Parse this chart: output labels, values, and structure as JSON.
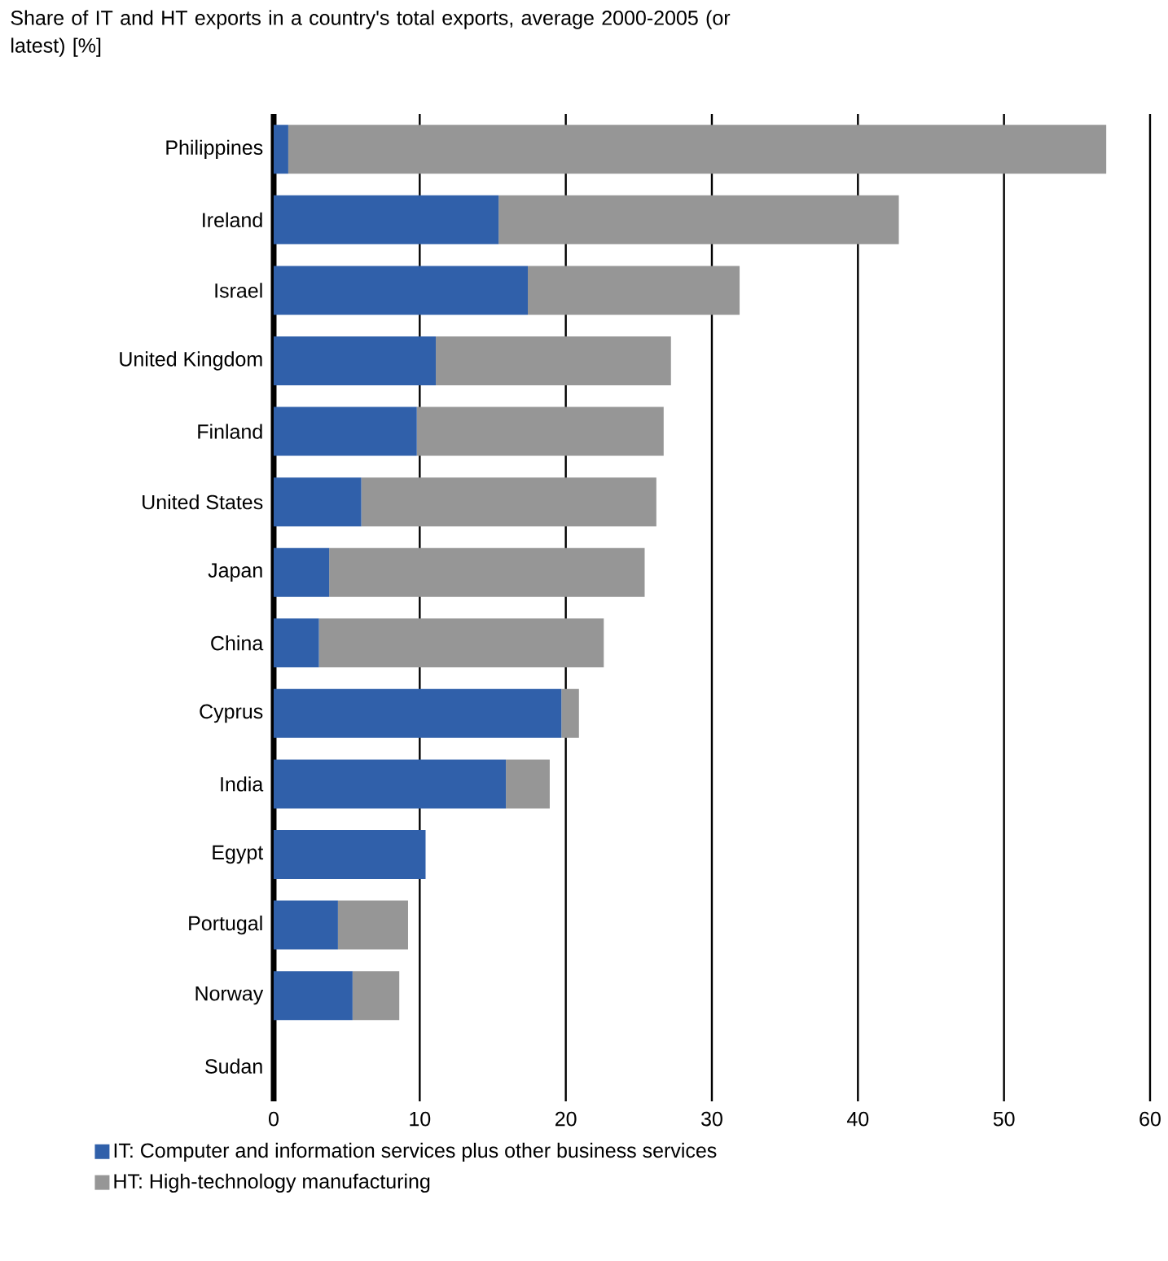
{
  "chart_data": {
    "type": "bar",
    "orientation": "horizontal",
    "stacked": true,
    "title": "Share of IT and HT exports in a country's total exports, average 2000-2005 (or latest) [%]",
    "categories": [
      "Philippines",
      "Ireland",
      "Israel",
      "United Kingdom",
      "Finland",
      "United States",
      "Japan",
      "China",
      "Cyprus",
      "India",
      "Egypt",
      "Portugal",
      "Norway",
      "Sudan"
    ],
    "series": [
      {
        "name": "IT: Computer and information services plus other business services",
        "color": "#3060aa",
        "values": [
          1.0,
          15.4,
          17.4,
          11.1,
          9.8,
          6.0,
          3.8,
          3.1,
          19.7,
          15.9,
          10.4,
          4.4,
          5.4,
          0
        ]
      },
      {
        "name": "HT: High-technology manufacturing",
        "color": "#969696",
        "values": [
          56.0,
          27.4,
          14.5,
          16.1,
          16.9,
          20.2,
          21.6,
          19.5,
          1.2,
          3.0,
          0,
          4.8,
          3.2,
          0
        ]
      }
    ],
    "xlim": [
      0,
      60
    ],
    "xticks": [
      0,
      10,
      20,
      30,
      40,
      50,
      60
    ],
    "grid": "x",
    "legend": "bottom"
  }
}
